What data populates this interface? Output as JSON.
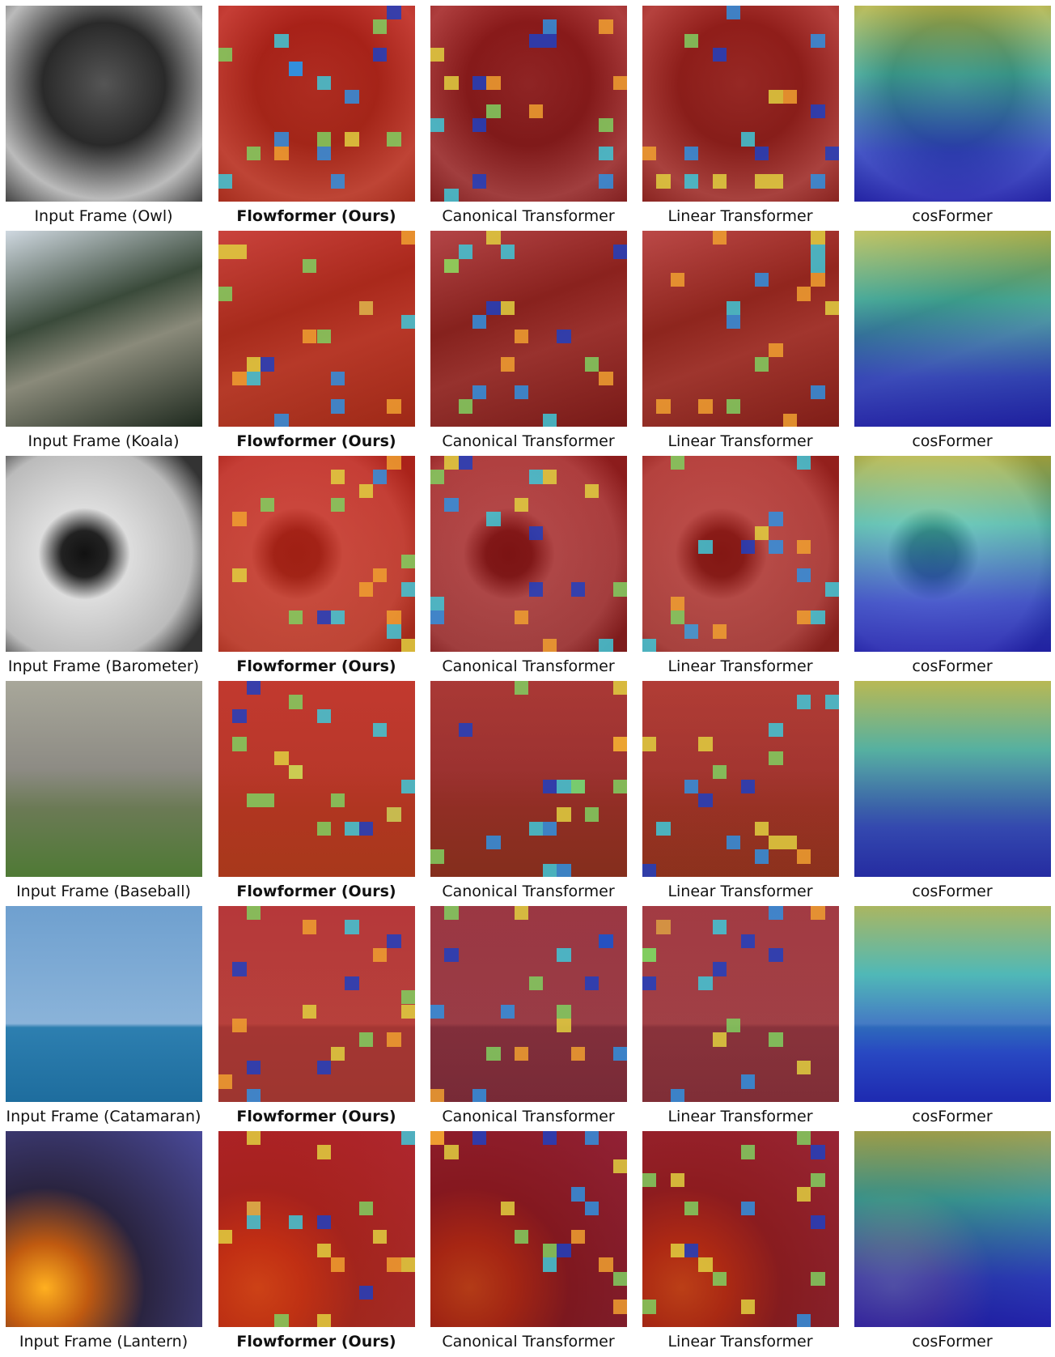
{
  "rows": [
    {
      "captions": [
        "Input Frame (Owl)",
        "Flowformer (Ours)",
        "Canonical Transformer",
        "Linear Transformer",
        "cosFormer"
      ]
    },
    {
      "captions": [
        "Input Frame (Koala)",
        "Flowformer (Ours)",
        "Canonical Transformer",
        "Linear Transformer",
        "cosFormer"
      ]
    },
    {
      "captions": [
        "Input Frame (Barometer)",
        "Flowformer (Ours)",
        "Canonical Transformer",
        "Linear Transformer",
        "cosFormer"
      ]
    },
    {
      "captions": [
        "Input Frame (Baseball)",
        "Flowformer (Ours)",
        "Canonical Transformer",
        "Linear Transformer",
        "cosFormer"
      ]
    },
    {
      "captions": [
        "Input Frame (Catamaran)",
        "Flowformer (Ours)",
        "Canonical Transformer",
        "Linear Transformer",
        "cosFormer"
      ]
    },
    {
      "captions": [
        "Input Frame (Lantern)",
        "Flowformer (Ours)",
        "Canonical Transformer",
        "Linear Transformer",
        "cosFormer"
      ]
    }
  ]
}
